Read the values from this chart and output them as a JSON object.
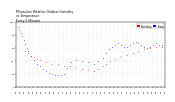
{
  "title": "Milwaukee Weather Outdoor Humidity\nvs Temperature\nEvery 5 Minutes",
  "title_fontsize": 2.2,
  "background_color": "#ffffff",
  "plot_bg_color": "#ffffff",
  "grid_color": "#c8c8c8",
  "blue_color": "#0000ee",
  "red_color": "#ee0000",
  "legend_labels": [
    "Humidity",
    "Temp"
  ],
  "legend_colors": [
    "#ee0000",
    "#0000ee"
  ],
  "ylim": [
    0,
    100
  ],
  "xlim": [
    0,
    1
  ],
  "blue_x": [
    0.01,
    0.02,
    0.03,
    0.04,
    0.05,
    0.06,
    0.07,
    0.08,
    0.1,
    0.12,
    0.14,
    0.16,
    0.18,
    0.2,
    0.22,
    0.24,
    0.26,
    0.28,
    0.3,
    0.32,
    0.34,
    0.37,
    0.4,
    0.44,
    0.48,
    0.52,
    0.55,
    0.58,
    0.6,
    0.62,
    0.64,
    0.66,
    0.68,
    0.7,
    0.72,
    0.74,
    0.76,
    0.78,
    0.8,
    0.82,
    0.84,
    0.86,
    0.88,
    0.9,
    0.92,
    0.94,
    0.96,
    0.98
  ],
  "blue_y": [
    92,
    88,
    84,
    78,
    72,
    66,
    60,
    55,
    48,
    42,
    36,
    32,
    28,
    25,
    22,
    20,
    19,
    18,
    18,
    20,
    30,
    38,
    42,
    40,
    38,
    36,
    40,
    45,
    52,
    58,
    62,
    65,
    68,
    65,
    62,
    62,
    65,
    68,
    70,
    68,
    65,
    62,
    60,
    62,
    65,
    68,
    65,
    62
  ],
  "red_x": [
    0.06,
    0.08,
    0.1,
    0.12,
    0.14,
    0.16,
    0.2,
    0.24,
    0.28,
    0.32,
    0.36,
    0.4,
    0.44,
    0.48,
    0.52,
    0.55,
    0.58,
    0.6,
    0.63,
    0.66,
    0.7,
    0.74,
    0.78,
    0.82,
    0.86,
    0.9,
    0.94,
    0.98
  ],
  "red_y": [
    55,
    52,
    48,
    46,
    44,
    42,
    38,
    36,
    35,
    33,
    32,
    30,
    28,
    26,
    25,
    28,
    32,
    36,
    40,
    44,
    48,
    50,
    52,
    55,
    58,
    60,
    62,
    65
  ],
  "marker_size": 0.8,
  "yticks": [
    0,
    20,
    40,
    60,
    80,
    100
  ],
  "ytick_labels": [
    "0",
    "20",
    "40",
    "60",
    "80",
    "100"
  ],
  "xtick_count": 36,
  "tick_fontsize": 1.6,
  "spine_lw": 0.3
}
